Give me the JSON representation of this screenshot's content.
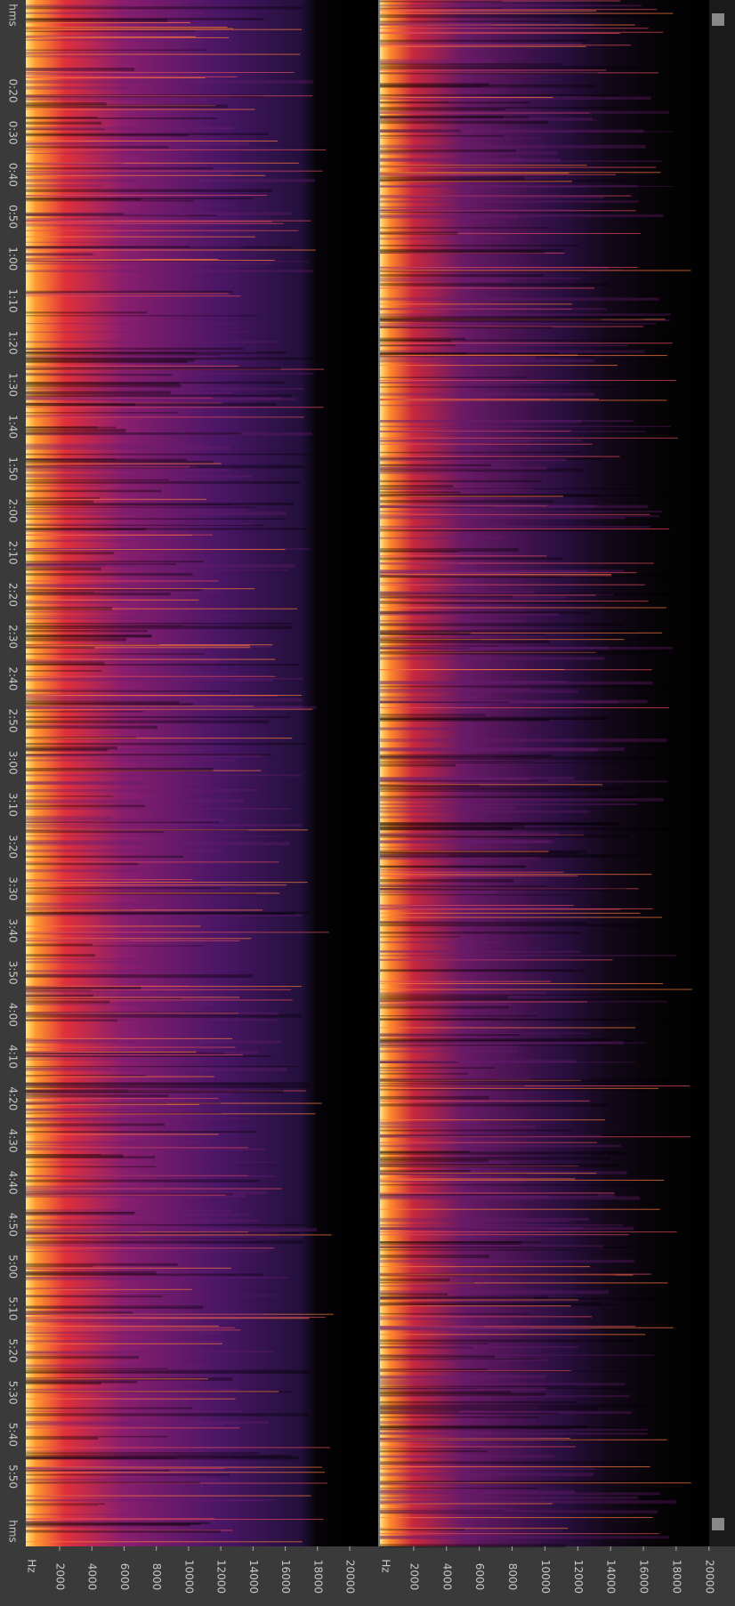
{
  "time_axis": {
    "unit": "hms",
    "labels": [
      "0:20",
      "0:30",
      "0:40",
      "0:50",
      "1:00",
      "1:10",
      "1:20",
      "1:30",
      "1:40",
      "1:50",
      "2:00",
      "2:10",
      "2:20",
      "2:30",
      "2:40",
      "2:50",
      "3:00",
      "3:10",
      "3:20",
      "3:30",
      "3:40",
      "3:50",
      "4:00",
      "4:10",
      "4:20",
      "4:30",
      "4:40",
      "4:50",
      "5:00",
      "5:10",
      "5:20",
      "5:30",
      "5:40",
      "5:50"
    ]
  },
  "freq_axis": {
    "unit": "Hz",
    "ticks": [
      2000,
      4000,
      6000,
      8000,
      10000,
      12000,
      14000,
      16000,
      18000,
      20000
    ]
  }
}
